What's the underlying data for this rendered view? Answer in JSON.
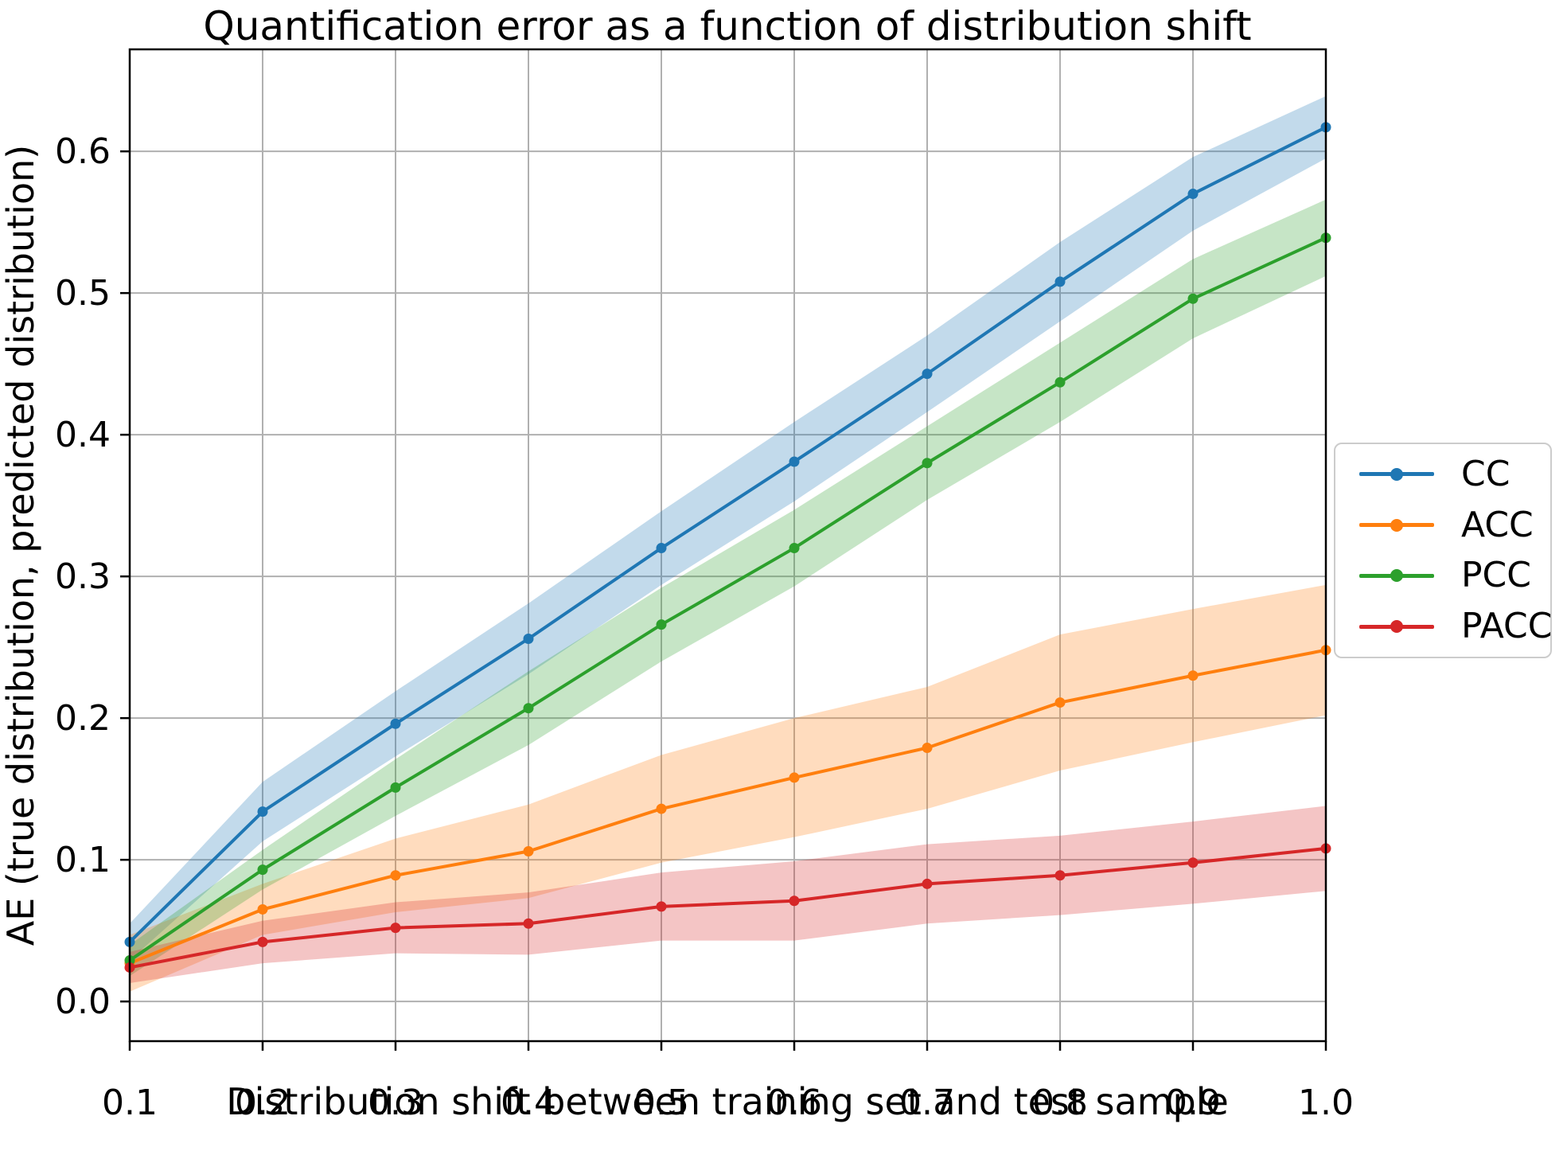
{
  "chart_data": {
    "type": "line",
    "title": "Quantification error as a function of distribution shift",
    "xlabel": "Distribution shift between training set and test sample",
    "ylabel": "AE (true distribution, predicted distribution)",
    "x": [
      0.1,
      0.2,
      0.3,
      0.4,
      0.5,
      0.6,
      0.7,
      0.8,
      0.9,
      1.0
    ],
    "x_tick_labels": [
      "0.1",
      "0.2",
      "0.3",
      "0.4",
      "0.5",
      "0.6",
      "0.7",
      "0.8",
      "0.9",
      "1.0"
    ],
    "y_ticks": [
      0.0,
      0.1,
      0.2,
      0.3,
      0.4,
      0.5,
      0.6
    ],
    "y_tick_labels": [
      "0.0",
      "0.1",
      "0.2",
      "0.3",
      "0.4",
      "0.5",
      "0.6"
    ],
    "xlim": [
      0.1,
      1.0
    ],
    "ylim": [
      -0.028,
      0.672
    ],
    "grid": true,
    "grid_color": "#b0b0b0",
    "legend_position": "right-outside",
    "band_alpha": 0.27,
    "series": [
      {
        "name": "CC",
        "color": "#1f77b4",
        "values": [
          0.042,
          0.134,
          0.196,
          0.256,
          0.32,
          0.381,
          0.443,
          0.508,
          0.57,
          0.617
        ],
        "band_half_width": [
          0.013,
          0.021,
          0.023,
          0.025,
          0.026,
          0.028,
          0.027,
          0.028,
          0.026,
          0.022
        ]
      },
      {
        "name": "ACC",
        "color": "#ff7f0e",
        "values": [
          0.027,
          0.065,
          0.089,
          0.106,
          0.136,
          0.158,
          0.179,
          0.211,
          0.23,
          0.248
        ],
        "band_half_width": [
          0.02,
          0.018,
          0.026,
          0.033,
          0.038,
          0.042,
          0.043,
          0.048,
          0.047,
          0.046
        ]
      },
      {
        "name": "PCC",
        "color": "#2ca02c",
        "values": [
          0.029,
          0.093,
          0.151,
          0.207,
          0.266,
          0.32,
          0.38,
          0.437,
          0.496,
          0.539
        ],
        "band_half_width": [
          0.011,
          0.014,
          0.02,
          0.026,
          0.026,
          0.027,
          0.026,
          0.028,
          0.028,
          0.027
        ]
      },
      {
        "name": "PACC",
        "color": "#d62728",
        "values": [
          0.024,
          0.042,
          0.052,
          0.055,
          0.067,
          0.071,
          0.083,
          0.089,
          0.098,
          0.108
        ],
        "band_half_width": [
          0.011,
          0.015,
          0.018,
          0.022,
          0.024,
          0.028,
          0.028,
          0.028,
          0.029,
          0.03
        ]
      }
    ]
  },
  "legend": {
    "items": [
      {
        "label": "CC"
      },
      {
        "label": "ACC"
      },
      {
        "label": "PCC"
      },
      {
        "label": "PACC"
      }
    ]
  }
}
